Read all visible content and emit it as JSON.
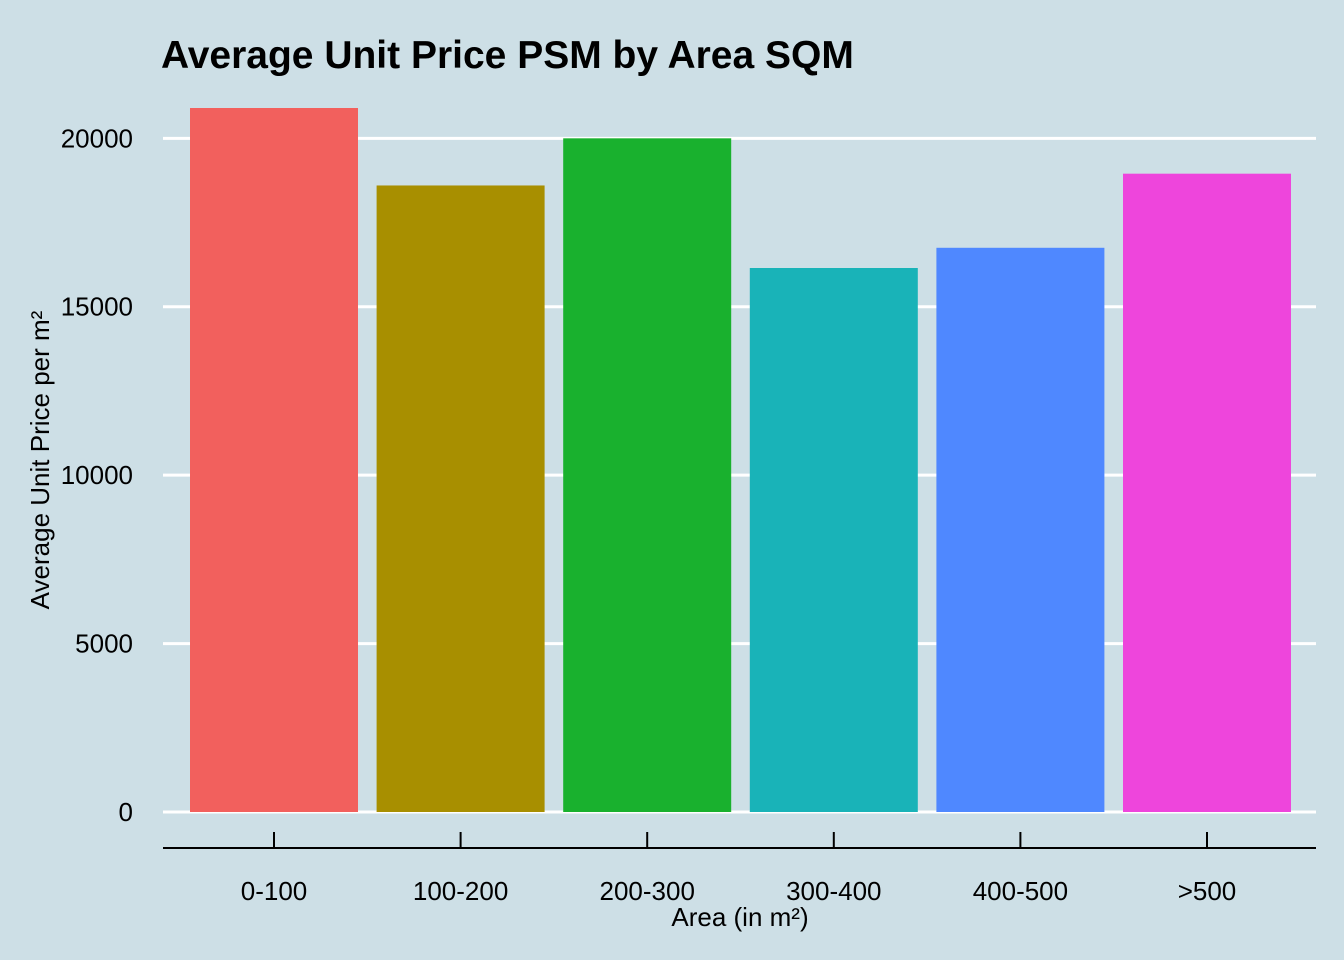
{
  "chart_data": {
    "type": "bar",
    "title": "Average Unit Price PSM by Area SQM",
    "xlabel": "Area (in m²)",
    "ylabel": "Average Unit Price per m²",
    "categories": [
      "0-100",
      "100-200",
      "200-300",
      "300-400",
      "400-500",
      ">500"
    ],
    "values": [
      20900,
      18600,
      20000,
      16150,
      16750,
      18950
    ],
    "colors": [
      "#F2605D",
      "#A88F00",
      "#19B12E",
      "#19B3B8",
      "#4F88FF",
      "#EE45DC"
    ],
    "ylim": [
      0,
      20900
    ],
    "yticks": [
      0,
      5000,
      10000,
      15000,
      20000
    ],
    "grid": "horizontal",
    "legend": "none",
    "background": "#cddfe6",
    "gridline_color": "#ffffff"
  }
}
